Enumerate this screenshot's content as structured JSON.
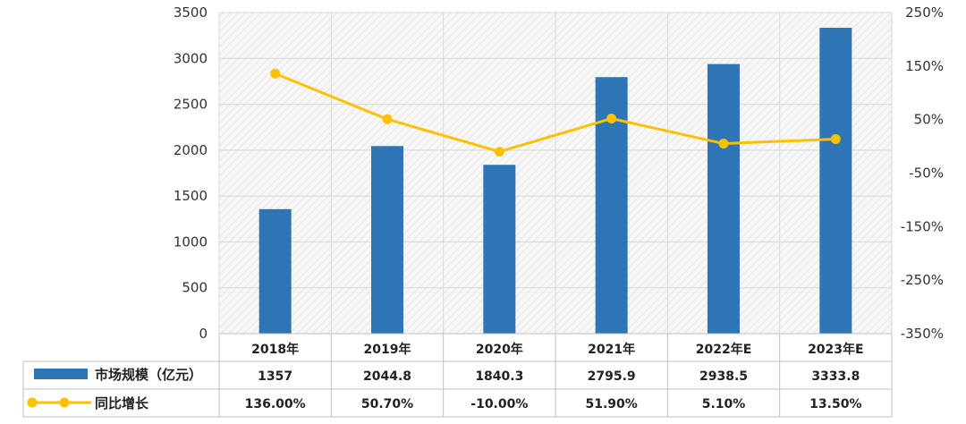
{
  "chart_data": {
    "type": "bar",
    "categories": [
      "2018年",
      "2019年",
      "2020年",
      "2021年",
      "2022年E",
      "2023年E"
    ],
    "series": [
      {
        "name": "市场规模（亿元）",
        "type": "bar",
        "axis": "left",
        "color": "#2E75B6",
        "values": [
          1357,
          2044.8,
          1840.3,
          2795.9,
          2938.5,
          3333.8
        ],
        "labels": [
          "1357",
          "2044.8",
          "1840.3",
          "2795.9",
          "2938.5",
          "3333.8"
        ]
      },
      {
        "name": "同比增长",
        "type": "line",
        "axis": "right",
        "color": "#FFC000",
        "values": [
          136.0,
          50.7,
          -10.0,
          51.9,
          5.1,
          13.5
        ],
        "labels": [
          "136.00%",
          "50.70%",
          "-10.00%",
          "51.90%",
          "5.10%",
          "13.50%"
        ]
      }
    ],
    "y_left": {
      "lim": [
        0,
        3500
      ],
      "ticks": [
        "0",
        "500",
        "1000",
        "1500",
        "2000",
        "2500",
        "3000",
        "3500"
      ]
    },
    "y_right": {
      "lim": [
        -350,
        250
      ],
      "ticks": [
        "-350%",
        "-250%",
        "-150%",
        "-50%",
        "50%",
        "150%",
        "250%"
      ]
    },
    "grid": true,
    "legend": "data-table"
  }
}
